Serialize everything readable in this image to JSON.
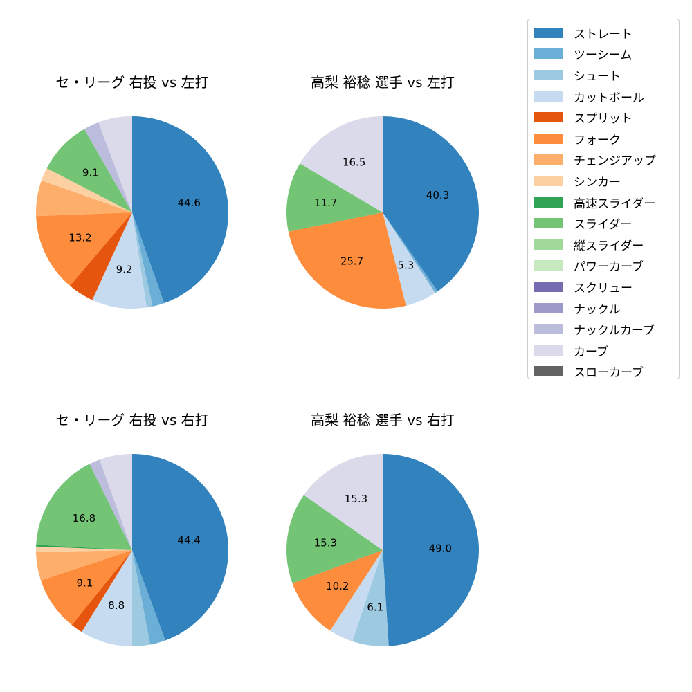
{
  "chart_data": [
    {
      "type": "pie",
      "title": "セ・リーグ 右投 vs 左打",
      "categories": [
        "ストレート",
        "ツーシーム",
        "シュート",
        "カットボール",
        "スプリット",
        "フォーク",
        "チェンジアップ",
        "シンカー",
        "スライダー",
        "ナックルカーブ",
        "カーブ"
      ],
      "values": [
        44.6,
        2.0,
        1.0,
        9.2,
        4.4,
        13.2,
        6.0,
        2.2,
        9.1,
        2.6,
        5.7
      ],
      "labels": [
        "44.6",
        "",
        "",
        "9.2",
        "",
        "13.2",
        "",
        "",
        "9.1",
        "",
        ""
      ]
    },
    {
      "type": "pie",
      "title": "高梨 裕稔 選手 vs 左打",
      "categories": [
        "ストレート",
        "ツーシーム",
        "カットボール",
        "フォーク",
        "スライダー",
        "カーブ"
      ],
      "values": [
        40.3,
        0.5,
        5.3,
        25.7,
        11.7,
        16.5
      ],
      "labels": [
        "40.3",
        "",
        "5.3",
        "25.7",
        "11.7",
        "16.5"
      ]
    },
    {
      "type": "pie",
      "title": "セ・リーグ 右投 vs 右打",
      "categories": [
        "ストレート",
        "ツーシーム",
        "シュート",
        "カットボール",
        "スプリット",
        "フォーク",
        "チェンジアップ",
        "シンカー",
        "高速スライダー",
        "スライダー",
        "ナックルカーブ",
        "カーブ"
      ],
      "values": [
        44.4,
        2.6,
        3.0,
        8.8,
        2.0,
        9.1,
        4.8,
        0.9,
        0.3,
        16.8,
        1.8,
        5.5
      ],
      "labels": [
        "44.4",
        "",
        "",
        "8.8",
        "",
        "9.1",
        "",
        "",
        "",
        "16.8",
        "",
        ""
      ]
    },
    {
      "type": "pie",
      "title": "高梨 裕稔 選手 vs 右打",
      "categories": [
        "ストレート",
        "シュート",
        "カットボール",
        "フォーク",
        "スライダー",
        "カーブ"
      ],
      "values": [
        49.0,
        6.1,
        4.1,
        10.2,
        15.3,
        15.3
      ],
      "labels": [
        "49.0",
        "6.1",
        "",
        "10.2",
        "15.3",
        "15.3"
      ]
    }
  ],
  "legend": {
    "placement": "top-right",
    "items": [
      {
        "name": "ストレート",
        "color": "#3182bd"
      },
      {
        "name": "ツーシーム",
        "color": "#6baed6"
      },
      {
        "name": "シュート",
        "color": "#9ecae1"
      },
      {
        "name": "カットボール",
        "color": "#c6dbef"
      },
      {
        "name": "スプリット",
        "color": "#e6550d"
      },
      {
        "name": "フォーク",
        "color": "#fd8d3c"
      },
      {
        "name": "チェンジアップ",
        "color": "#fdae6b"
      },
      {
        "name": "シンカー",
        "color": "#fdd0a2"
      },
      {
        "name": "高速スライダー",
        "color": "#31a354"
      },
      {
        "name": "スライダー",
        "color": "#74c476"
      },
      {
        "name": "縦スライダー",
        "color": "#a1d99b"
      },
      {
        "name": "パワーカーブ",
        "color": "#c7e9c0"
      },
      {
        "name": "スクリュー",
        "color": "#756bb1"
      },
      {
        "name": "ナックル",
        "color": "#9e9ac8"
      },
      {
        "name": "ナックルカーブ",
        "color": "#bcbddc"
      },
      {
        "name": "カーブ",
        "color": "#dadaeb"
      },
      {
        "name": "スローカーブ",
        "color": "#636363"
      }
    ]
  }
}
